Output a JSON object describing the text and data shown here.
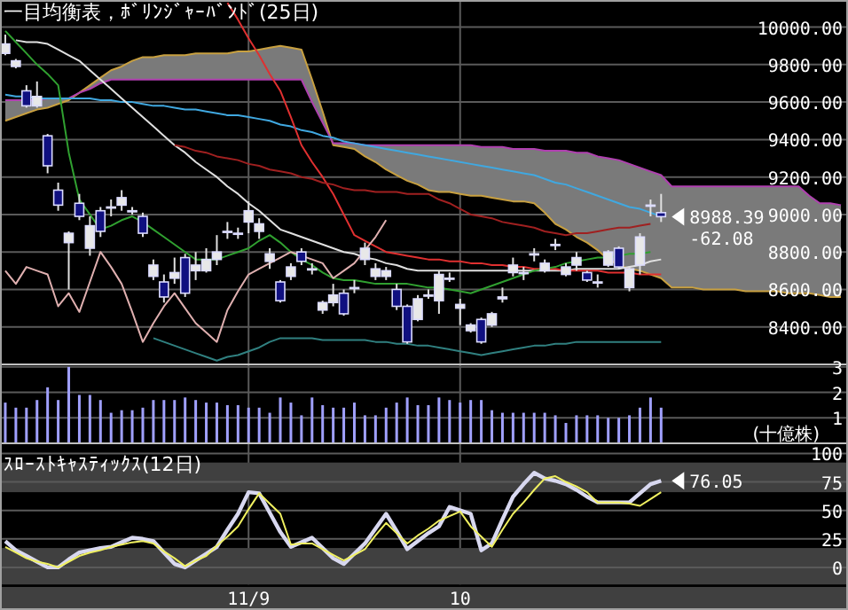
{
  "chart_data": [
    {
      "type": "candlestick",
      "title": "一目均衡表，ﾎﾞﾘﾝｼﾞｬｰﾊﾞﾝﾄﾞ(25日)",
      "categories": [
        null,
        null,
        null,
        null,
        null,
        null,
        null,
        null,
        null,
        null,
        null,
        null,
        null,
        null,
        null,
        null,
        null,
        null,
        null,
        null,
        null,
        null,
        null,
        null,
        null,
        null,
        null,
        null,
        null,
        null,
        null,
        null,
        null,
        null,
        null,
        null,
        null,
        null,
        null,
        null,
        null,
        null,
        null,
        null,
        null,
        null,
        null,
        null,
        null,
        null,
        null,
        null,
        null,
        null,
        null,
        null,
        null,
        null,
        null,
        null,
        null,
        null,
        null,
        null,
        null,
        null,
        null,
        null,
        null,
        null,
        null,
        null,
        null,
        null,
        null,
        null,
        null,
        null,
        null,
        null
      ],
      "ohlc": [
        [
          9860,
          9960,
          9850,
          9910
        ],
        [
          9790,
          9830,
          9780,
          9820
        ],
        [
          9660,
          9690,
          9570,
          9580
        ],
        [
          9580,
          9710,
          9570,
          9630
        ],
        [
          9420,
          9430,
          9220,
          9260
        ],
        [
          9130,
          9170,
          9020,
          9050
        ],
        [
          8850,
          8910,
          8600,
          8900
        ],
        [
          9060,
          9110,
          8970,
          8990
        ],
        [
          8820,
          8990,
          8780,
          8940
        ],
        [
          9020,
          9040,
          8880,
          8910
        ],
        [
          9040,
          9080,
          8990,
          9040
        ],
        [
          9050,
          9130,
          9020,
          9090
        ],
        [
          9020,
          9040,
          9000,
          9020
        ],
        [
          8990,
          9010,
          8880,
          8900
        ],
        [
          8670,
          8760,
          8650,
          8730
        ],
        [
          8640,
          8680,
          8530,
          8560
        ],
        [
          8660,
          8770,
          8630,
          8690
        ],
        [
          8770,
          8790,
          8560,
          8580
        ],
        [
          8700,
          8800,
          8650,
          8730
        ],
        [
          8700,
          8820,
          8690,
          8760
        ],
        [
          8760,
          8890,
          8730,
          8800
        ],
        [
          8910,
          8960,
          8870,
          8910
        ],
        [
          8900,
          8930,
          8870,
          8900
        ],
        [
          8960,
          9070,
          8900,
          9020
        ],
        [
          8910,
          8980,
          8870,
          8950
        ],
        [
          8750,
          8820,
          8710,
          8790
        ],
        [
          8640,
          8650,
          8530,
          8540
        ],
        [
          8670,
          8740,
          8650,
          8720
        ],
        [
          8800,
          8820,
          8730,
          8750
        ],
        [
          8710,
          8740,
          8680,
          8710
        ],
        [
          8490,
          8540,
          8470,
          8530
        ],
        [
          8530,
          8630,
          8510,
          8570
        ],
        [
          8580,
          8600,
          8460,
          8470
        ],
        [
          8610,
          8650,
          8580,
          8610
        ],
        [
          8760,
          8850,
          8730,
          8820
        ],
        [
          8670,
          8740,
          8650,
          8710
        ],
        [
          8670,
          8720,
          8650,
          8700
        ],
        [
          8600,
          8630,
          8490,
          8510
        ],
        [
          8510,
          8520,
          8310,
          8320
        ],
        [
          8440,
          8570,
          8430,
          8550
        ],
        [
          8570,
          8600,
          8550,
          8570
        ],
        [
          8540,
          8700,
          8470,
          8680
        ],
        [
          8660,
          8690,
          8640,
          8660
        ],
        [
          8500,
          8550,
          8410,
          8520
        ],
        [
          8380,
          8420,
          8370,
          8410
        ],
        [
          8440,
          8450,
          8310,
          8320
        ],
        [
          8410,
          8480,
          8400,
          8470
        ],
        [
          8550,
          8610,
          8530,
          8560
        ],
        [
          8690,
          8770,
          8670,
          8730
        ],
        [
          8690,
          8720,
          8650,
          8690
        ],
        [
          8790,
          8820,
          8750,
          8790
        ],
        [
          8700,
          8760,
          8690,
          8740
        ],
        [
          8840,
          8870,
          8810,
          8840
        ],
        [
          8680,
          8740,
          8670,
          8720
        ],
        [
          8730,
          8800,
          8700,
          8770
        ],
        [
          8690,
          8700,
          8640,
          8650
        ],
        [
          8640,
          8680,
          8610,
          8640
        ],
        [
          8730,
          8810,
          8720,
          8800
        ],
        [
          8820,
          8830,
          8710,
          8720
        ],
        [
          8610,
          8720,
          8590,
          8710
        ],
        [
          8730,
          8900,
          8680,
          8880
        ],
        [
          9050,
          9080,
          8990,
          9050
        ],
        [
          9010,
          9110,
          8960,
          8988.39
        ],
        null,
        null,
        null,
        null,
        null,
        null,
        null,
        null,
        null,
        null,
        null,
        null,
        null,
        null,
        null,
        null,
        null
      ],
      "colors": [
        "#e8e8e8",
        "#e8e8e8",
        "#101080",
        "#e8e8e8",
        "#101080",
        "#101080",
        "#e8e8e8",
        "#101080",
        "#e8e8e8",
        "#101080",
        "#e8e8e8",
        "#e8e8e8",
        "#e8e8e8",
        "#101080",
        "#e8e8e8",
        "#101080",
        "#e8e8e8",
        "#101080",
        "#e8e8e8",
        "#e8e8e8",
        "#e8e8e8",
        "#e8e8e8",
        "#e8e8e8",
        "#e8e8e8",
        "#e8e8e8",
        "#e8e8e8",
        "#101080",
        "#e8e8e8",
        "#101080",
        "#e8e8e8",
        "#e8e8e8",
        "#e8e8e8",
        "#101080",
        "#e8e8e8",
        "#e8e8e8",
        "#e8e8e8",
        "#e8e8e8",
        "#101080",
        "#101080",
        "#e8e8e8",
        "#e8e8e8",
        "#e8e8e8",
        "#e8e8e8",
        "#e8e8e8",
        "#e8e8e8",
        "#101080",
        "#e8e8e8",
        "#e8e8e8",
        "#e8e8e8",
        "#e8e8e8",
        "#e8e8e8",
        "#e8e8e8",
        "#e8e8e8",
        "#e8e8e8",
        "#e8e8e8",
        "#101080",
        "#e8e8e8",
        "#e8e8e8",
        "#101080",
        "#e8e8e8",
        "#e8e8e8",
        "#e8e8e8",
        "#101080",
        null,
        null,
        null,
        null,
        null,
        null,
        null,
        null,
        null,
        null,
        null,
        null,
        null,
        null,
        null,
        null,
        null
      ],
      "series": [
        {
          "type": "line",
          "color": "#c8a040",
          "values": [
            9500,
            9520,
            9540,
            9560,
            9570,
            9590,
            9610,
            9650,
            9690,
            9730,
            9770,
            9790,
            9820,
            9840,
            9840,
            9850,
            9850,
            9850,
            9860,
            9860,
            9860,
            9860,
            9870,
            9870,
            9880,
            9890,
            9900,
            9890,
            9880,
            9720,
            9550,
            9370,
            9360,
            9350,
            9310,
            9280,
            9240,
            9210,
            9180,
            9160,
            9130,
            9120,
            9120,
            9110,
            9100,
            9100,
            9090,
            9080,
            9070,
            9070,
            9060,
            9010,
            8950,
            8920,
            8880,
            8850,
            8810,
            8760,
            8730,
            8710,
            8700,
            8680,
            8660,
            8610,
            8610,
            8610,
            8600,
            8600,
            8600,
            8600,
            8590,
            8590,
            8590,
            8590,
            8580,
            8580,
            8580,
            8570,
            8560,
            8560
          ],
          "lower": [
            9500,
            9520,
            9540,
            9560,
            9570,
            9590,
            9610,
            9650,
            9690,
            9730,
            9770,
            9790,
            9820,
            9840,
            9840,
            9850,
            9850,
            9850,
            9860,
            9860,
            9860,
            9860,
            9870,
            9870,
            9880,
            9890,
            9900,
            9890,
            9880,
            9720,
            9550,
            9370,
            9360,
            9350,
            9310,
            9280,
            9240,
            9210,
            9180,
            9160,
            9130,
            9120,
            9120,
            9110,
            9100,
            9100,
            9090,
            9080,
            9070,
            9070,
            9060,
            9010,
            8950,
            8920,
            8880,
            8850,
            8810,
            8760,
            8730,
            8710,
            8700,
            8680,
            8660,
            8610,
            8610,
            8610,
            8600,
            8600,
            8600,
            8600,
            8590,
            8590,
            8590,
            8590,
            8580,
            8580,
            8580,
            8570,
            8560,
            8560
          ],
          "upper": [
            9610,
            9610,
            9610,
            9610,
            9620,
            9620,
            9620,
            9650,
            9670,
            9700,
            9720,
            9720,
            9720,
            9720,
            9720,
            9720,
            9720,
            9720,
            9720,
            9720,
            9720,
            9720,
            9720,
            9720,
            9720,
            9720,
            9720,
            9720,
            9720,
            9600,
            9490,
            9380,
            9380,
            9380,
            9370,
            9370,
            9370,
            9370,
            9370,
            9370,
            9370,
            9370,
            9370,
            9370,
            9370,
            9360,
            9360,
            9360,
            9350,
            9350,
            9350,
            9340,
            9340,
            9340,
            9330,
            9330,
            9310,
            9300,
            9290,
            9270,
            9250,
            9230,
            9210,
            9150,
            9150,
            9150,
            9150,
            9150,
            9150,
            9150,
            9150,
            9150,
            9150,
            9150,
            9150,
            9150,
            9100,
            9060,
            9060,
            9050
          ]
        },
        {
          "type": "line",
          "color": "#b040b0",
          "values": [
            9610,
            9610,
            9610,
            9610,
            9620,
            9620,
            9620,
            9650,
            9670,
            9700,
            9720,
            9720,
            9720,
            9720,
            9720,
            9720,
            9720,
            9720,
            9720,
            9720,
            9720,
            9720,
            9720,
            9720,
            9720,
            9720,
            9720,
            9720,
            9720,
            9600,
            9490,
            9380,
            9380,
            9380,
            9370,
            9370,
            9370,
            9370,
            9370,
            9370,
            9370,
            9370,
            9370,
            9370,
            9370,
            9360,
            9360,
            9360,
            9350,
            9350,
            9350,
            9340,
            9340,
            9340,
            9330,
            9330,
            9310,
            9300,
            9290,
            9270,
            9250,
            9230,
            9210,
            9150,
            9150,
            9150,
            9150,
            9150,
            9150,
            9150,
            9150,
            9150,
            9150,
            9150,
            9150,
            9150,
            9100,
            9060,
            9060,
            9050
          ]
        },
        {
          "type": "line",
          "color": "#40a8e0",
          "values": [
            9640,
            9630,
            9630,
            9620,
            9620,
            9620,
            9620,
            9620,
            9620,
            9610,
            9610,
            9600,
            9600,
            9590,
            9580,
            9580,
            9570,
            9560,
            9560,
            9550,
            9540,
            9530,
            9530,
            9520,
            9510,
            9500,
            9480,
            9470,
            9450,
            9440,
            9420,
            9410,
            9390,
            9380,
            9370,
            9360,
            9350,
            9340,
            9330,
            9320,
            9310,
            9300,
            9290,
            9280,
            9270,
            9260,
            9250,
            9240,
            9230,
            9220,
            9210,
            9190,
            9170,
            9160,
            9140,
            9120,
            9100,
            9080,
            9060,
            9040,
            9030,
            9010,
            8990,
            null,
            null,
            null,
            null,
            null,
            null,
            null,
            null,
            null,
            null,
            null,
            null,
            null,
            null,
            null,
            null,
            null
          ]
        },
        {
          "type": "line",
          "color": "#e0e0e0",
          "values": [
            null,
            9930,
            9920,
            9920,
            9910,
            9880,
            9850,
            9820,
            9770,
            9720,
            9670,
            9620,
            9570,
            9520,
            9470,
            9420,
            9370,
            9330,
            9280,
            9240,
            9200,
            9150,
            9110,
            9060,
            9020,
            8970,
            8920,
            8900,
            8880,
            8860,
            8840,
            8820,
            8800,
            8790,
            8770,
            8760,
            8740,
            8730,
            8710,
            8700,
            8700,
            8700,
            8700,
            8700,
            8700,
            8700,
            8700,
            8700,
            8700,
            8700,
            8700,
            8700,
            8700,
            8700,
            8710,
            8710,
            8710,
            8710,
            8710,
            8720,
            8730,
            8750,
            8760,
            null,
            null,
            null,
            null,
            null,
            null,
            null,
            null,
            null,
            null,
            null,
            null,
            null,
            null,
            null,
            null,
            null
          ]
        },
        {
          "type": "line",
          "color": "#e03030",
          "values": [
            null,
            null,
            null,
            null,
            null,
            null,
            null,
            null,
            null,
            null,
            null,
            null,
            null,
            null,
            null,
            null,
            null,
            null,
            null,
            null,
            null,
            10130,
            10040,
            9940,
            9850,
            9750,
            9660,
            9520,
            9370,
            9280,
            9200,
            9110,
            9000,
            8890,
            8860,
            8830,
            8800,
            8790,
            8780,
            8770,
            8760,
            8760,
            8750,
            8750,
            8740,
            8740,
            8730,
            8730,
            8720,
            8720,
            8710,
            8710,
            8710,
            8700,
            8700,
            8700,
            8700,
            8690,
            8690,
            8690,
            8680,
            8680,
            8680,
            null,
            null,
            null,
            null,
            null,
            null,
            null,
            null,
            null,
            null,
            null,
            null,
            null,
            null,
            null,
            null,
            null
          ]
        },
        {
          "type": "line",
          "color": "#a02020",
          "values": [
            null,
            null,
            null,
            null,
            null,
            null,
            null,
            null,
            null,
            null,
            null,
            null,
            null,
            null,
            null,
            null,
            9370,
            9360,
            9340,
            9330,
            9310,
            9300,
            9290,
            9270,
            9260,
            9240,
            9230,
            9220,
            9200,
            9190,
            9170,
            9160,
            9140,
            9130,
            9130,
            9120,
            9120,
            9120,
            9110,
            9110,
            9110,
            9080,
            9060,
            9030,
            9000,
            8990,
            8980,
            8960,
            8950,
            8940,
            8930,
            8910,
            8900,
            8890,
            8900,
            8900,
            8910,
            8920,
            8930,
            8930,
            8940,
            8950,
            null,
            null,
            null,
            null,
            null,
            null,
            null,
            null,
            null,
            null,
            null,
            null,
            null,
            null,
            null,
            null,
            null,
            null
          ]
        },
        {
          "type": "line",
          "color": "#30a030",
          "values": [
            9980,
            9920,
            9860,
            9800,
            9750,
            9690,
            9330,
            9080,
            9000,
            8920,
            8940,
            8970,
            8990,
            8960,
            8920,
            8880,
            8840,
            8800,
            8760,
            8760,
            8760,
            8780,
            8800,
            8820,
            8860,
            8890,
            8850,
            8800,
            8760,
            8730,
            8690,
            8660,
            8650,
            8650,
            8640,
            8630,
            8630,
            8630,
            8630,
            8620,
            8610,
            8610,
            8600,
            8590,
            8580,
            8600,
            8620,
            8640,
            8660,
            8680,
            8700,
            8710,
            8720,
            8740,
            8750,
            8760,
            8770,
            8770,
            8780,
            8790,
            8790,
            8800,
            null,
            null,
            null,
            null,
            null,
            null,
            null,
            null,
            null,
            null,
            null,
            null,
            null,
            null,
            null,
            null,
            null,
            null
          ]
        },
        {
          "type": "line",
          "color": "#308080",
          "values": [
            null,
            null,
            null,
            null,
            null,
            null,
            null,
            null,
            null,
            null,
            null,
            null,
            null,
            null,
            8340,
            8320,
            8300,
            8280,
            8260,
            8240,
            8220,
            8240,
            8250,
            8270,
            8290,
            8320,
            8340,
            8340,
            8340,
            8340,
            8330,
            8330,
            8330,
            8330,
            8330,
            8320,
            8320,
            8310,
            8310,
            8300,
            8300,
            8290,
            8280,
            8270,
            8260,
            8250,
            8260,
            8270,
            8280,
            8290,
            8300,
            8300,
            8310,
            8310,
            8320,
            8320,
            8320,
            8320,
            8320,
            8320,
            8320,
            8320,
            8320,
            null,
            null,
            null,
            null,
            null,
            null,
            null,
            null,
            null,
            null,
            null,
            null,
            null,
            null,
            null,
            null,
            null
          ]
        },
        {
          "type": "line",
          "color": "#e0b0b0",
          "values": [
            8700,
            8630,
            8720,
            8700,
            8680,
            8510,
            8580,
            8480,
            8640,
            8800,
            8720,
            8630,
            8480,
            8320,
            8420,
            8510,
            8580,
            8500,
            8420,
            8370,
            8320,
            8490,
            8590,
            8680,
            8710,
            8740,
            8770,
            8800,
            8780,
            8760,
            8740,
            8660,
            8700,
            8740,
            8810,
            8880,
            8970,
            null,
            null,
            null,
            null,
            null,
            null,
            null,
            null,
            null,
            null,
            null,
            null,
            null,
            null,
            null,
            null,
            null,
            null,
            null,
            null,
            null,
            null,
            null,
            null,
            null,
            null,
            null,
            null,
            null,
            null,
            null,
            null,
            null,
            null,
            null,
            null,
            null,
            null,
            null,
            null,
            null,
            null,
            null
          ]
        }
      ],
      "ylim": [
        8200,
        10140
      ],
      "yticks": [
        {
          "value": 8400,
          "label": "8400.00"
        },
        {
          "value": 8600,
          "label": "8600.00"
        },
        {
          "value": 8800,
          "label": "8800.00"
        },
        {
          "value": 9000,
          "label": "9000.00"
        },
        {
          "value": 9200,
          "label": "9200.00"
        },
        {
          "value": 9400,
          "label": "9400.00"
        },
        {
          "value": 9600,
          "label": "9600.00"
        },
        {
          "value": 9800,
          "label": "9800.00"
        },
        {
          "value": 10000,
          "label": "10000.00"
        }
      ],
      "grid": true,
      "tick_labels": "y",
      "annotations": [
        "8988.39",
        "-62.08"
      ]
    },
    {
      "type": "bar",
      "ylabel": "(十億株)",
      "color": "#a0a0ff",
      "categories": [
        null,
        null,
        null,
        null,
        null,
        null,
        null,
        null,
        null,
        null,
        null,
        null,
        null,
        null,
        null,
        null,
        null,
        null,
        null,
        null,
        null,
        null,
        null,
        null,
        null,
        null,
        null,
        null,
        null,
        null,
        null,
        null,
        null,
        null,
        null,
        null,
        null,
        null,
        null,
        null,
        null,
        null,
        null,
        null,
        null,
        null,
        null,
        null,
        null,
        null,
        null,
        null,
        null,
        null,
        null,
        null,
        null,
        null,
        null,
        null,
        null,
        null,
        null,
        null,
        null,
        null,
        null,
        null,
        null,
        null,
        null,
        null,
        null,
        null,
        null,
        null,
        null,
        null,
        null,
        null
      ],
      "values": [
        1.6,
        1.4,
        1.4,
        1.7,
        2.2,
        1.7,
        3.0,
        1.9,
        1.9,
        1.7,
        1.2,
        1.3,
        1.3,
        1.4,
        1.7,
        1.7,
        1.7,
        1.8,
        1.7,
        1.6,
        1.6,
        1.5,
        1.5,
        1.4,
        1.4,
        1.2,
        1.8,
        1.6,
        1.1,
        1.8,
        1.5,
        1.4,
        1.4,
        1.6,
        1.1,
        1.1,
        1.4,
        1.6,
        1.8,
        1.5,
        1.5,
        1.8,
        1.7,
        1.6,
        1.7,
        1.7,
        1.3,
        1.2,
        1.2,
        1.2,
        1.2,
        1.2,
        1.1,
        0.8,
        1.1,
        1.1,
        1.1,
        1.0,
        1.0,
        1.1,
        1.4,
        1.8,
        1.4,
        null,
        null,
        null,
        null,
        null,
        null,
        null,
        null,
        null,
        null,
        null,
        null,
        null,
        null,
        null,
        null,
        null
      ],
      "ylim": [
        0,
        3.1
      ],
      "yticks": [
        1,
        2,
        3
      ],
      "grid": true,
      "tick_labels": "y"
    },
    {
      "type": "line",
      "title": "ｽﾛｰｽﾄｷｬｽﾃｨｯｸｽ(12日)",
      "categories": [
        null,
        null,
        null,
        null,
        null,
        null,
        null,
        null,
        null,
        null,
        null,
        null,
        null,
        null,
        null,
        null,
        null,
        null,
        null,
        null,
        null,
        null,
        null,
        "11/9",
        null,
        null,
        null,
        null,
        null,
        null,
        null,
        null,
        null,
        null,
        null,
        null,
        null,
        null,
        null,
        null,
        null,
        null,
        null,
        "10",
        null,
        null,
        null,
        null,
        null,
        null,
        null,
        null,
        null,
        null,
        null,
        null,
        null,
        null,
        null,
        null,
        null,
        null,
        null,
        null,
        null,
        null,
        null,
        null,
        null,
        null,
        null,
        null,
        null,
        null,
        null,
        null,
        null,
        null,
        null,
        null
      ],
      "series": [
        {
          "color": "#d8d8f0",
          "values": [
            23,
            15,
            10,
            5,
            0,
            0,
            7,
            13,
            15,
            17,
            18,
            22,
            26,
            25,
            23,
            13,
            3,
            0,
            6,
            12,
            18,
            33,
            47,
            66,
            65,
            48,
            31,
            18,
            22,
            26,
            17,
            8,
            3,
            12,
            21,
            34,
            47,
            32,
            16,
            23,
            30,
            36,
            53,
            50,
            47,
            15,
            21,
            42,
            62,
            73,
            83,
            78,
            76,
            73,
            68,
            62,
            57,
            57,
            57,
            57,
            65,
            73,
            76,
            null,
            null,
            null,
            null,
            null,
            null,
            null,
            null,
            null,
            null,
            null,
            null,
            null,
            null,
            null,
            null,
            null
          ]
        },
        {
          "color": "#f0f060",
          "values": [
            18,
            13,
            8,
            5,
            3,
            0,
            5,
            10,
            13,
            15,
            18,
            20,
            22,
            23,
            21,
            14,
            8,
            1,
            6,
            10,
            19,
            27,
            36,
            51,
            65,
            56,
            47,
            20,
            21,
            21,
            16,
            11,
            6,
            11,
            16,
            28,
            39,
            30,
            21,
            28,
            34,
            41,
            45,
            49,
            36,
            27,
            18,
            33,
            47,
            57,
            68,
            78,
            80,
            75,
            71,
            66,
            57,
            57,
            57,
            56,
            54,
            60,
            66,
            null,
            null,
            null,
            null,
            null,
            null,
            null,
            null,
            null,
            null,
            null,
            null,
            null,
            null,
            null,
            null,
            null
          ]
        }
      ],
      "ylim": [
        -15,
        100
      ],
      "yticks": [
        0,
        25,
        50,
        75,
        100
      ],
      "grid": true,
      "bands": [
        {
          "axis": "y",
          "from": 66,
          "to": 92,
          "color": "#404040"
        },
        {
          "axis": "y",
          "from": -15,
          "to": 17,
          "color": "#404040"
        }
      ],
      "annotations": [
        "76.05"
      ]
    }
  ]
}
